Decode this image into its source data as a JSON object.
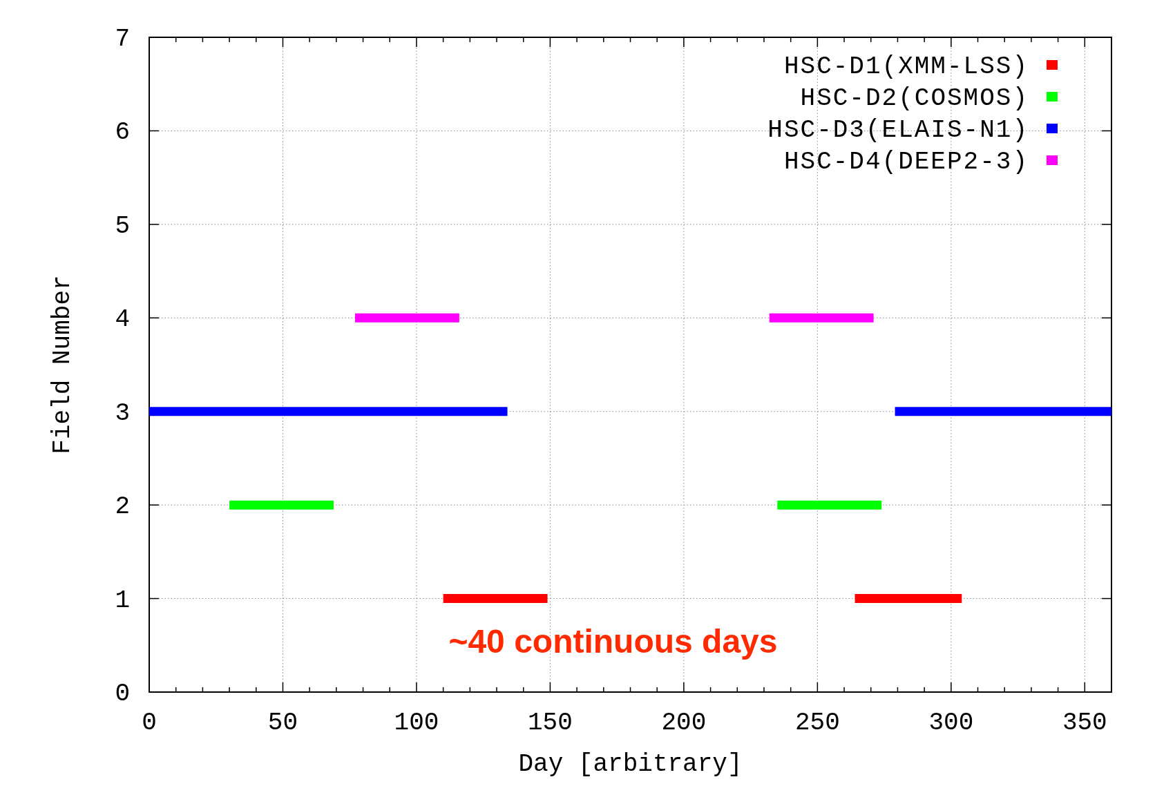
{
  "chart_data": {
    "type": "line",
    "xlabel": "Day [arbitrary]",
    "ylabel": "Field Number",
    "xlim": [
      0,
      360
    ],
    "xticks": [
      0,
      50,
      100,
      150,
      200,
      250,
      300,
      350
    ],
    "ylim": [
      0,
      7
    ],
    "yticks": [
      0,
      1,
      2,
      3,
      4,
      5,
      6,
      7
    ],
    "grid": true,
    "legend": "top right",
    "marker": "none",
    "line_style": "solid",
    "series": [
      {
        "name": "HSC-D1(XMM-LSS)",
        "color": "#ff0000",
        "x": [
          110,
          149,
          206,
          264,
          304
        ],
        "values": [
          1,
          1,
          null,
          1,
          1
        ]
      },
      {
        "name": "HSC-D2(COSMOS)",
        "color": "#00ff00",
        "x": [
          30,
          69,
          152,
          235,
          274
        ],
        "values": [
          2,
          2,
          null,
          2,
          2
        ]
      },
      {
        "name": "HSC-D3(ELAIS-N1)",
        "color": "#0000ff",
        "x": [
          0,
          134,
          206,
          279,
          360
        ],
        "values": [
          3,
          3,
          null,
          3,
          3
        ]
      },
      {
        "name": "HSC-D4(DEEP2-3)",
        "color": "#ff00ff",
        "x": [
          77,
          116,
          174,
          232,
          271
        ],
        "values": [
          4,
          4,
          null,
          4,
          4
        ]
      }
    ],
    "annotations": [
      "~40 continuous days"
    ]
  }
}
